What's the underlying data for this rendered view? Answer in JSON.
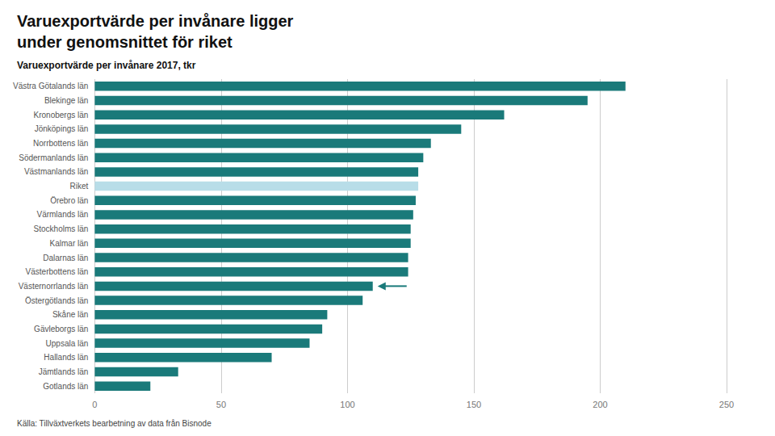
{
  "chart_data": {
    "type": "bar",
    "orientation": "horizontal",
    "title": "Varuexportvärde per invånare ligger\nunder genomsnittet för riket",
    "subtitle": "Varuexportvärde per invånare 2017, tkr",
    "source": "Källa: Tillväxtverkets bearbetning av data från Bisnode",
    "categories": [
      "Västra Götalands län",
      "Blekinge län",
      "Kronobergs län",
      "Jönköpings län",
      "Norrbottens län",
      "Södermanlands län",
      "Västmanlands län",
      "Riket",
      "Örebro län",
      "Värmlands län",
      "Stockholms län",
      "Kalmar län",
      "Dalarnas län",
      "Västerbottens län",
      "Västernorrlands län",
      "Östergötlands län",
      "Skåne län",
      "Gävleborgs län",
      "Uppsala län",
      "Hallands län",
      "Jämtlands län",
      "Gotlands län"
    ],
    "values": [
      210,
      195,
      162,
      145,
      133,
      130,
      128,
      128,
      127,
      126,
      125,
      125,
      124,
      124,
      110,
      106,
      92,
      90,
      85,
      70,
      33,
      22
    ],
    "colors": [
      "#1a7a7a",
      "#1a7a7a",
      "#1a7a7a",
      "#1a7a7a",
      "#1a7a7a",
      "#1a7a7a",
      "#1a7a7a",
      "#b8dde8",
      "#1a7a7a",
      "#1a7a7a",
      "#1a7a7a",
      "#1a7a7a",
      "#1a7a7a",
      "#1a7a7a",
      "#1a7a7a",
      "#1a7a7a",
      "#1a7a7a",
      "#1a7a7a",
      "#1a7a7a",
      "#1a7a7a",
      "#1a7a7a",
      "#1a7a7a"
    ],
    "annotations": [
      {
        "category": "Västernorrlands län",
        "marker": "arrow",
        "color": "#1a7a7a"
      }
    ],
    "xlim": [
      0,
      250
    ],
    "xticks": [
      0,
      50,
      100,
      150,
      200,
      250
    ],
    "grid": true
  }
}
